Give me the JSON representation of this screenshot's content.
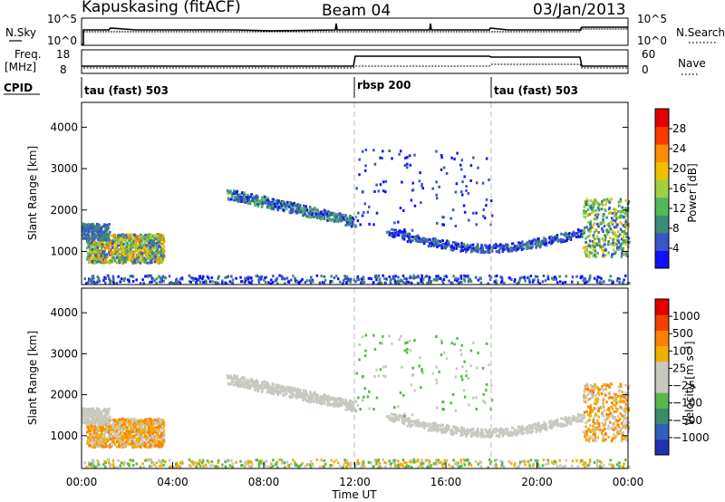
{
  "header": {
    "station": "Kapuskasing (fitACF)",
    "beam": "Beam 04",
    "date": "03/Jan/2013"
  },
  "top_panels": {
    "nsky_label": "N.Sky",
    "nsky_ticks_left": [
      "10^5",
      "10^0"
    ],
    "nsky_ticks_right": [
      "10^5",
      "10^0"
    ],
    "nsearch_label": "N.Search",
    "freq_label_line1": "Freq.",
    "freq_label_line2": "[MHz]",
    "freq_ticks": [
      "18",
      "8"
    ],
    "nave_label": "Nave",
    "nave_ticks": [
      "60",
      "0"
    ],
    "cpid_label": "CPID",
    "cpid_segments": [
      {
        "label": "tau (fast) 503",
        "start_hour": 0
      },
      {
        "label": "rbsp 200",
        "start_hour": 12
      },
      {
        "label": "tau (fast) 503",
        "start_hour": 18
      }
    ]
  },
  "chart_data": [
    {
      "type": "heatmap",
      "name": "power",
      "ylabel": "Slant Range [km]",
      "xlim": [
        0,
        24
      ],
      "ylim": [
        200,
        4600
      ],
      "yticks": [
        "1000",
        "2000",
        "3000",
        "4000"
      ],
      "colorbar": {
        "label": "Power [dB]",
        "ticks": [
          "28",
          "24",
          "20",
          "16",
          "12",
          "8",
          "4"
        ],
        "colors": [
          "#1010ff",
          "#3a55c8",
          "#3c8a7a",
          "#52b85a",
          "#a0d040",
          "#f0c000",
          "#ff8c00",
          "#ff3a00",
          "#e00000"
        ]
      },
      "features": [
        {
          "desc": "strong echo patch",
          "x": [
            0.2,
            3.6
          ],
          "y": [
            700,
            1500
          ],
          "level": "high"
        },
        {
          "desc": "sloping band",
          "x": [
            6.5,
            12.0
          ],
          "y": [
            1700,
            2500
          ],
          "level": "medium"
        },
        {
          "desc": "low-range band",
          "x": [
            13.5,
            22.0
          ],
          "y": [
            1000,
            1500
          ],
          "level": "low"
        },
        {
          "desc": "near-range clutter",
          "x": [
            0,
            24
          ],
          "y": [
            250,
            500
          ],
          "level": "low"
        }
      ]
    },
    {
      "type": "heatmap",
      "name": "velocity",
      "ylabel": "Slant Range [km]",
      "xlabel": "Time UT",
      "xlim": [
        0,
        24
      ],
      "ylim": [
        200,
        4600
      ],
      "xticks": [
        "00:00",
        "04:00",
        "08:00",
        "12:00",
        "16:00",
        "20:00",
        "00:00"
      ],
      "yticks": [
        "1000",
        "2000",
        "3000",
        "4000"
      ],
      "colorbar": {
        "label": "Velocity [m s⁻¹]",
        "ticks": [
          "1000",
          "500",
          "100",
          "25",
          "−25",
          "−100",
          "−500",
          "−1000"
        ],
        "colors": [
          "#2030b0",
          "#2f5fc0",
          "#3c8a6a",
          "#58b84a",
          "#c8c8c0",
          "#c8c8c0",
          "#f0b000",
          "#ff8000",
          "#f04000",
          "#e00000"
        ]
      }
    }
  ]
}
